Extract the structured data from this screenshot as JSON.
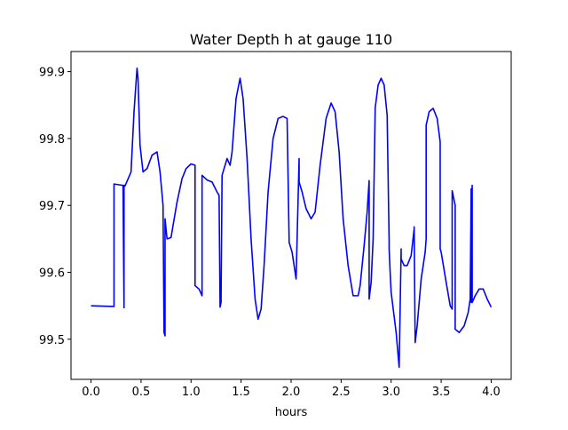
{
  "chart_data": {
    "type": "line",
    "title": "Water Depth h at gauge 110",
    "xlabel": "hours",
    "ylabel": "",
    "xlim": [
      -0.2,
      4.2
    ],
    "ylim": [
      99.44,
      99.93
    ],
    "xticks": [
      0.0,
      0.5,
      1.0,
      1.5,
      2.0,
      2.5,
      3.0,
      3.5,
      4.0
    ],
    "xtick_labels": [
      "0.0",
      "0.5",
      "1.0",
      "1.5",
      "2.0",
      "2.5",
      "3.0",
      "3.5",
      "4.0"
    ],
    "yticks": [
      99.5,
      99.6,
      99.7,
      99.8,
      99.9
    ],
    "ytick_labels": [
      "99.5",
      "99.6",
      "99.7",
      "99.8",
      "99.9"
    ],
    "grid": false,
    "colors": {
      "series": "#0000ff",
      "axes": "#000000",
      "background": "#ffffff"
    },
    "series": [
      {
        "x": [
          0.0,
          0.23,
          0.23,
          0.32,
          0.33,
          0.33,
          0.34,
          0.34,
          0.4,
          0.43,
          0.46,
          0.47,
          0.49,
          0.52,
          0.56,
          0.61,
          0.66,
          0.69,
          0.72,
          0.73,
          0.74,
          0.74,
          0.75,
          0.76,
          0.8,
          0.82,
          0.86,
          0.91,
          0.95,
          1.0,
          1.04,
          1.04,
          1.08,
          1.11,
          1.11,
          1.16,
          1.21,
          1.26,
          1.28,
          1.29,
          1.3,
          1.3,
          1.31,
          1.36,
          1.39,
          1.41,
          1.45,
          1.49,
          1.52,
          1.56,
          1.6,
          1.64,
          1.67,
          1.7,
          1.73,
          1.77,
          1.82,
          1.87,
          1.92,
          1.96,
          1.98,
          1.98,
          2.01,
          2.05,
          2.08,
          2.08,
          2.11,
          2.15,
          2.2,
          2.24,
          2.29,
          2.35,
          2.4,
          2.44,
          2.48,
          2.52,
          2.57,
          2.62,
          2.67,
          2.69,
          2.73,
          2.76,
          2.78,
          2.78,
          2.8,
          2.82,
          2.84,
          2.84,
          2.87,
          2.9,
          2.93,
          2.96,
          2.98,
          2.98,
          2.99,
          3.0,
          3.05,
          3.08,
          3.1,
          3.1,
          3.13,
          3.16,
          3.2,
          3.23,
          3.23,
          3.24,
          3.26,
          3.3,
          3.34,
          3.35,
          3.35,
          3.38,
          3.42,
          3.46,
          3.49,
          3.49,
          3.5,
          3.55,
          3.59,
          3.61,
          3.61,
          3.64,
          3.64,
          3.68,
          3.73,
          3.77,
          3.79,
          3.8,
          3.8,
          3.81,
          3.81,
          3.84,
          3.88,
          3.92,
          3.96,
          4.0
        ],
        "y": [
          99.55,
          99.549,
          99.732,
          99.73,
          99.547,
          99.73,
          99.73,
          99.729,
          99.75,
          99.84,
          99.905,
          99.89,
          99.79,
          99.75,
          99.755,
          99.775,
          99.78,
          99.75,
          99.7,
          99.51,
          99.505,
          99.68,
          99.665,
          99.65,
          99.652,
          99.67,
          99.705,
          99.74,
          99.755,
          99.762,
          99.76,
          99.58,
          99.575,
          99.565,
          99.745,
          99.738,
          99.735,
          99.72,
          99.715,
          99.548,
          99.555,
          99.56,
          99.745,
          99.77,
          99.76,
          99.78,
          99.86,
          99.89,
          99.86,
          99.77,
          99.65,
          99.56,
          99.53,
          99.545,
          99.61,
          99.72,
          99.8,
          99.83,
          99.833,
          99.83,
          99.65,
          99.645,
          99.63,
          99.59,
          99.77,
          99.735,
          99.72,
          99.695,
          99.68,
          99.69,
          99.76,
          99.83,
          99.853,
          99.84,
          99.78,
          99.68,
          99.61,
          99.565,
          99.565,
          99.58,
          99.64,
          99.69,
          99.737,
          99.56,
          99.585,
          99.65,
          99.84,
          99.845,
          99.88,
          99.89,
          99.88,
          99.835,
          99.645,
          99.635,
          99.6,
          99.57,
          99.51,
          99.458,
          99.635,
          99.62,
          99.61,
          99.61,
          99.625,
          99.665,
          99.668,
          99.495,
          99.52,
          99.59,
          99.63,
          99.65,
          99.82,
          99.84,
          99.845,
          99.83,
          99.795,
          99.635,
          99.63,
          99.585,
          99.55,
          99.545,
          99.722,
          99.7,
          99.515,
          99.51,
          99.52,
          99.54,
          99.56,
          99.725,
          99.555,
          99.73,
          99.555,
          99.565,
          99.575,
          99.575,
          99.56,
          99.548
        ]
      }
    ]
  }
}
